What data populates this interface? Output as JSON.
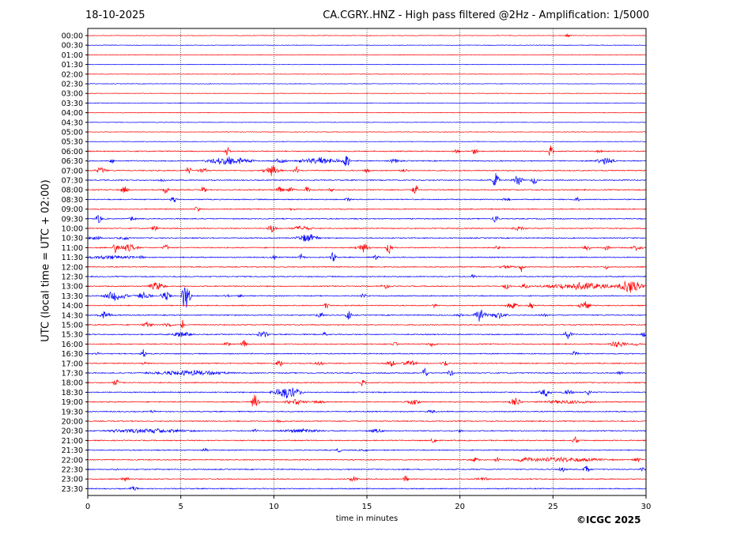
{
  "header": {
    "date": "18-10-2025",
    "title": "CA.CGRY..HNZ - High pass filtered @2Hz - Amplification: 1/5000"
  },
  "footer": {
    "credit": "©ICGC 2025"
  },
  "chart_data": {
    "type": "line",
    "title": "CA.CGRY..HNZ - High pass filtered @2Hz - Amplification: 1/5000",
    "xlabel": "time in minutes",
    "ylabel": "UTC (local time = UTC + 02:00)",
    "xlim": [
      0,
      30
    ],
    "x_ticks": [
      0,
      5,
      10,
      15,
      20,
      25,
      30
    ],
    "row_labels": [
      "00:00",
      "00:30",
      "01:00",
      "01:30",
      "02:00",
      "02:30",
      "03:00",
      "03:30",
      "04:00",
      "04:30",
      "05:00",
      "05:30",
      "06:00",
      "06:30",
      "07:00",
      "07:30",
      "08:00",
      "08:30",
      "09:00",
      "09:30",
      "10:00",
      "10:30",
      "11:00",
      "11:30",
      "12:00",
      "12:30",
      "13:00",
      "13:30",
      "14:00",
      "14:30",
      "15:00",
      "15:30",
      "16:00",
      "16:30",
      "17:00",
      "17:30",
      "18:00",
      "18:30",
      "19:00",
      "19:30",
      "20:00",
      "20:30",
      "21:00",
      "21:30",
      "22:00",
      "22:30",
      "23:00",
      "23:30"
    ],
    "trace_colors": [
      "#ff0000",
      "#0000ff"
    ],
    "grid": "vertical dotted lines every 5 minutes",
    "bursts": [
      [
        0,
        25.8,
        0.3,
        0.3
      ],
      [
        12,
        7.5,
        0.2,
        1.3
      ],
      [
        12,
        20.8,
        0.2,
        1
      ],
      [
        12,
        24.9,
        0.15,
        2.2
      ],
      [
        12,
        19.8,
        0.3,
        0.4
      ],
      [
        12,
        27.5,
        0.3,
        0.3
      ],
      [
        13,
        7.6,
        1.5,
        1.0
      ],
      [
        13,
        13.9,
        0.2,
        2.4
      ],
      [
        13,
        12.5,
        1.5,
        0.8
      ],
      [
        13,
        27.8,
        0.6,
        0.9
      ],
      [
        13,
        1.3,
        0.2,
        0.4
      ],
      [
        13,
        16.5,
        0.5,
        0.4
      ],
      [
        13,
        10.3,
        0.5,
        0.5
      ],
      [
        14,
        0.7,
        0.4,
        0.8
      ],
      [
        14,
        5.4,
        0.2,
        1
      ],
      [
        14,
        6.2,
        0.4,
        0.5
      ],
      [
        14,
        9.9,
        0.6,
        1.2
      ],
      [
        14,
        11.2,
        0.2,
        1
      ],
      [
        14,
        15,
        0.2,
        0.6
      ],
      [
        14,
        17,
        0.3,
        0.4
      ],
      [
        15,
        21.9,
        0.3,
        1.6
      ],
      [
        15,
        23.1,
        0.4,
        1.2
      ],
      [
        15,
        24.0,
        0.2,
        1.2
      ],
      [
        15,
        4.0,
        0.3,
        0.3
      ],
      [
        16,
        2,
        0.4,
        0.7
      ],
      [
        16,
        4.2,
        0.2,
        1
      ],
      [
        16,
        6.2,
        0.2,
        0.9
      ],
      [
        16,
        10.3,
        0.3,
        0.6
      ],
      [
        16,
        10.9,
        0.3,
        0.6
      ],
      [
        16,
        11.8,
        0.2,
        1.1
      ],
      [
        16,
        13.1,
        0.2,
        0.5
      ],
      [
        16,
        17.6,
        0.2,
        1.4
      ],
      [
        17,
        4.6,
        0.2,
        0.9
      ],
      [
        17,
        14,
        0.2,
        0.6
      ],
      [
        17,
        22.5,
        0.3,
        0.4
      ],
      [
        17,
        26.3,
        0.2,
        0.6
      ],
      [
        18,
        5.9,
        0.2,
        0.8
      ],
      [
        18,
        11,
        0.2,
        0.3
      ],
      [
        19,
        0.6,
        0.2,
        1.2
      ],
      [
        19,
        2.4,
        0.2,
        0.6
      ],
      [
        19,
        21.9,
        0.2,
        1.2
      ],
      [
        20,
        3.6,
        0.2,
        0.9
      ],
      [
        20,
        9.9,
        0.3,
        1.2
      ],
      [
        20,
        11.5,
        0.7,
        0.6
      ],
      [
        20,
        23.2,
        0.5,
        0.4
      ],
      [
        21,
        0.4,
        0.4,
        0.7
      ],
      [
        21,
        11.8,
        0.8,
        1.0
      ],
      [
        21,
        2,
        0.5,
        0.3
      ],
      [
        22,
        1.5,
        0.2,
        1.5
      ],
      [
        22,
        2.2,
        0.7,
        0.8
      ],
      [
        22,
        4.2,
        0.2,
        0.9
      ],
      [
        22,
        14.8,
        0.5,
        1.0
      ],
      [
        22,
        16.2,
        0.2,
        2.0
      ],
      [
        22,
        22,
        0.2,
        0.6
      ],
      [
        22,
        26.8,
        0.3,
        0.9
      ],
      [
        22,
        29.5,
        0.4,
        0.7
      ],
      [
        22,
        27.9,
        0.2,
        0.8
      ],
      [
        23,
        1.2,
        1.8,
        0.4
      ],
      [
        23,
        2.9,
        0.2,
        0.5
      ],
      [
        23,
        10,
        0.2,
        0.5
      ],
      [
        23,
        11.5,
        0.2,
        1.0
      ],
      [
        23,
        13.2,
        0.2,
        1.5
      ],
      [
        23,
        15.5,
        0.2,
        0.5
      ],
      [
        24,
        23.3,
        0.2,
        1.2
      ],
      [
        24,
        27.9,
        0.2,
        0.6
      ],
      [
        24,
        22.5,
        0.5,
        0.4
      ],
      [
        25,
        20.7,
        0.2,
        0.4
      ],
      [
        26,
        3.7,
        0.6,
        1.0
      ],
      [
        26,
        16,
        0.3,
        0.5
      ],
      [
        26,
        22.5,
        0.3,
        0.7
      ],
      [
        26,
        23.5,
        0.3,
        0.6
      ],
      [
        26,
        26.5,
        2.5,
        0.9
      ],
      [
        26,
        29.2,
        0.8,
        1.8
      ],
      [
        27,
        1.5,
        0.8,
        1.2
      ],
      [
        27,
        3.0,
        0.6,
        0.7
      ],
      [
        27,
        4.2,
        0.4,
        1.0
      ],
      [
        27,
        5.2,
        0.2,
        3.5
      ],
      [
        27,
        5.4,
        0.2,
        2.4
      ],
      [
        27,
        7.5,
        0.3,
        0.3
      ],
      [
        27,
        8.2,
        0.2,
        0.4
      ],
      [
        27,
        14.8,
        0.2,
        0.5
      ],
      [
        28,
        12.8,
        0.2,
        0.8
      ],
      [
        28,
        18.6,
        0.2,
        0.4
      ],
      [
        28,
        22.8,
        0.4,
        0.8
      ],
      [
        28,
        23.8,
        0.2,
        1.2
      ],
      [
        28,
        26.7,
        0.4,
        1.2
      ],
      [
        29,
        0.9,
        0.5,
        0.8
      ],
      [
        29,
        12.5,
        0.3,
        0.7
      ],
      [
        29,
        14.0,
        0.2,
        1.5
      ],
      [
        29,
        21.1,
        0.4,
        1.6
      ],
      [
        29,
        22,
        0.7,
        0.8
      ],
      [
        29,
        20,
        0.2,
        0.4
      ],
      [
        29,
        24.5,
        0.3,
        0.4
      ],
      [
        30,
        3.2,
        0.4,
        0.6
      ],
      [
        30,
        4.3,
        0.4,
        0.5
      ],
      [
        30,
        5.1,
        0.1,
        1.5
      ],
      [
        31,
        5,
        0.8,
        0.6
      ],
      [
        31,
        9.4,
        0.4,
        0.9
      ],
      [
        31,
        12.7,
        0.2,
        0.5
      ],
      [
        31,
        25.8,
        0.3,
        1.0
      ],
      [
        31,
        29.9,
        0.2,
        0.7
      ],
      [
        32,
        7.5,
        0.3,
        0.4
      ],
      [
        32,
        8.4,
        0.2,
        0.8
      ],
      [
        32,
        16.5,
        0.2,
        0.6
      ],
      [
        32,
        18.5,
        0.3,
        0.6
      ],
      [
        32,
        28.5,
        0.6,
        0.8
      ],
      [
        32,
        29.5,
        0.3,
        0.4
      ],
      [
        33,
        0.5,
        0.2,
        0.3
      ],
      [
        33,
        3,
        0.2,
        1.0
      ],
      [
        33,
        26.2,
        0.2,
        0.8
      ],
      [
        34,
        3,
        0.2,
        0.4
      ],
      [
        34,
        10.3,
        0.2,
        1.1
      ],
      [
        34,
        16.3,
        0.3,
        0.9
      ],
      [
        34,
        17.3,
        0.5,
        0.7
      ],
      [
        34,
        19.2,
        0.3,
        0.6
      ],
      [
        34,
        12.5,
        0.4,
        0.4
      ],
      [
        35,
        5.5,
        2.7,
        0.6
      ],
      [
        35,
        18.1,
        0.2,
        1.5
      ],
      [
        35,
        19.5,
        0.2,
        0.8
      ],
      [
        35,
        28.6,
        0.2,
        0.7
      ],
      [
        36,
        1.5,
        0.2,
        1.3
      ],
      [
        36,
        14.8,
        0.2,
        0.9
      ],
      [
        37,
        10.7,
        1.0,
        1.5
      ],
      [
        37,
        24.6,
        0.4,
        1.0
      ],
      [
        37,
        25.8,
        0.4,
        0.8
      ],
      [
        37,
        26.9,
        0.2,
        0.8
      ],
      [
        38,
        9,
        0.3,
        1.8
      ],
      [
        38,
        11.2,
        0.8,
        0.6
      ],
      [
        38,
        12.4,
        0.4,
        0.4
      ],
      [
        38,
        17.5,
        0.5,
        0.5
      ],
      [
        38,
        23.0,
        0.4,
        1.1
      ],
      [
        38,
        25.8,
        1.8,
        0.4
      ],
      [
        39,
        3.5,
        0.2,
        0.3
      ],
      [
        39,
        18.5,
        0.3,
        0.4
      ],
      [
        40,
        10.3,
        0.3,
        0.4
      ],
      [
        41,
        3.3,
        3.0,
        0.5
      ],
      [
        41,
        9,
        0.2,
        0.4
      ],
      [
        41,
        11.5,
        1.5,
        0.4
      ],
      [
        41,
        15.5,
        0.5,
        0.4
      ],
      [
        41,
        20,
        0.2,
        0.3
      ],
      [
        42,
        18.6,
        0.2,
        0.8
      ],
      [
        42,
        26.2,
        0.2,
        0.9
      ],
      [
        43,
        6.3,
        0.2,
        0.6
      ],
      [
        43,
        13.5,
        0.2,
        0.4
      ],
      [
        43,
        14.8,
        0.3,
        0.3
      ],
      [
        44,
        20.8,
        0.3,
        0.5
      ],
      [
        44,
        22.0,
        0.2,
        0.5
      ],
      [
        44,
        23.5,
        0.5,
        0.4
      ],
      [
        44,
        25.5,
        3.0,
        0.5
      ],
      [
        44,
        29.5,
        0.3,
        0.6
      ],
      [
        45,
        1.5,
        0.2,
        0.3
      ],
      [
        45,
        25.5,
        0.3,
        0.5
      ],
      [
        45,
        26.8,
        0.2,
        1.2
      ],
      [
        45,
        29.8,
        0.2,
        0.6
      ],
      [
        46,
        2,
        0.4,
        0.4
      ],
      [
        46,
        14.3,
        0.3,
        0.6
      ],
      [
        46,
        17.1,
        0.2,
        0.8
      ],
      [
        46,
        21.2,
        0.4,
        0.5
      ],
      [
        47,
        2.5,
        0.3,
        0.5
      ]
    ]
  }
}
